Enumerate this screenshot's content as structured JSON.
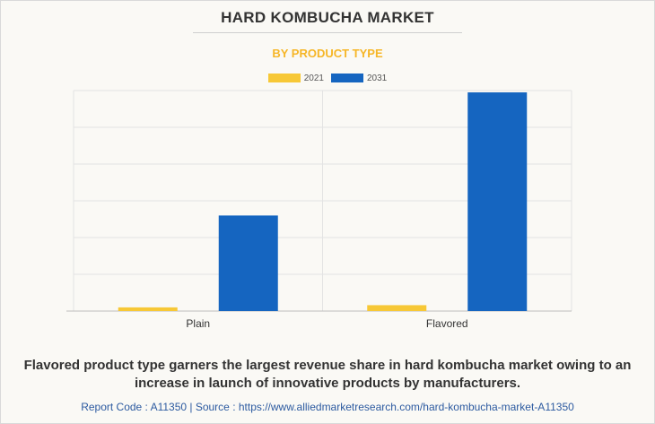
{
  "title": "HARD KOMBUCHA MARKET",
  "subtitle": "BY PRODUCT TYPE",
  "caption": "Flavored product type garners the largest revenue share in hard kombucha market owing to an increase in launch of innovative products by manufacturers.",
  "footer": "Report Code : A11350  |  Source : https://www.alliedmarketresearch.com/hard-kombucha-market-A11350",
  "colors": {
    "series_2021": "#f7c836",
    "series_2031": "#1565c0",
    "subtitle": "#f6b627"
  },
  "chart_data": {
    "type": "bar",
    "categories": [
      "Plain",
      "Flavored"
    ],
    "series": [
      {
        "name": "2021",
        "values": [
          0.1,
          0.16
        ]
      },
      {
        "name": "2031",
        "values": [
          2.6,
          5.95
        ]
      }
    ],
    "ylim": [
      0,
      6.0
    ],
    "y_gridlines": 6,
    "grid": true,
    "legend": "top-center",
    "y_tick_labels_shown": false
  }
}
